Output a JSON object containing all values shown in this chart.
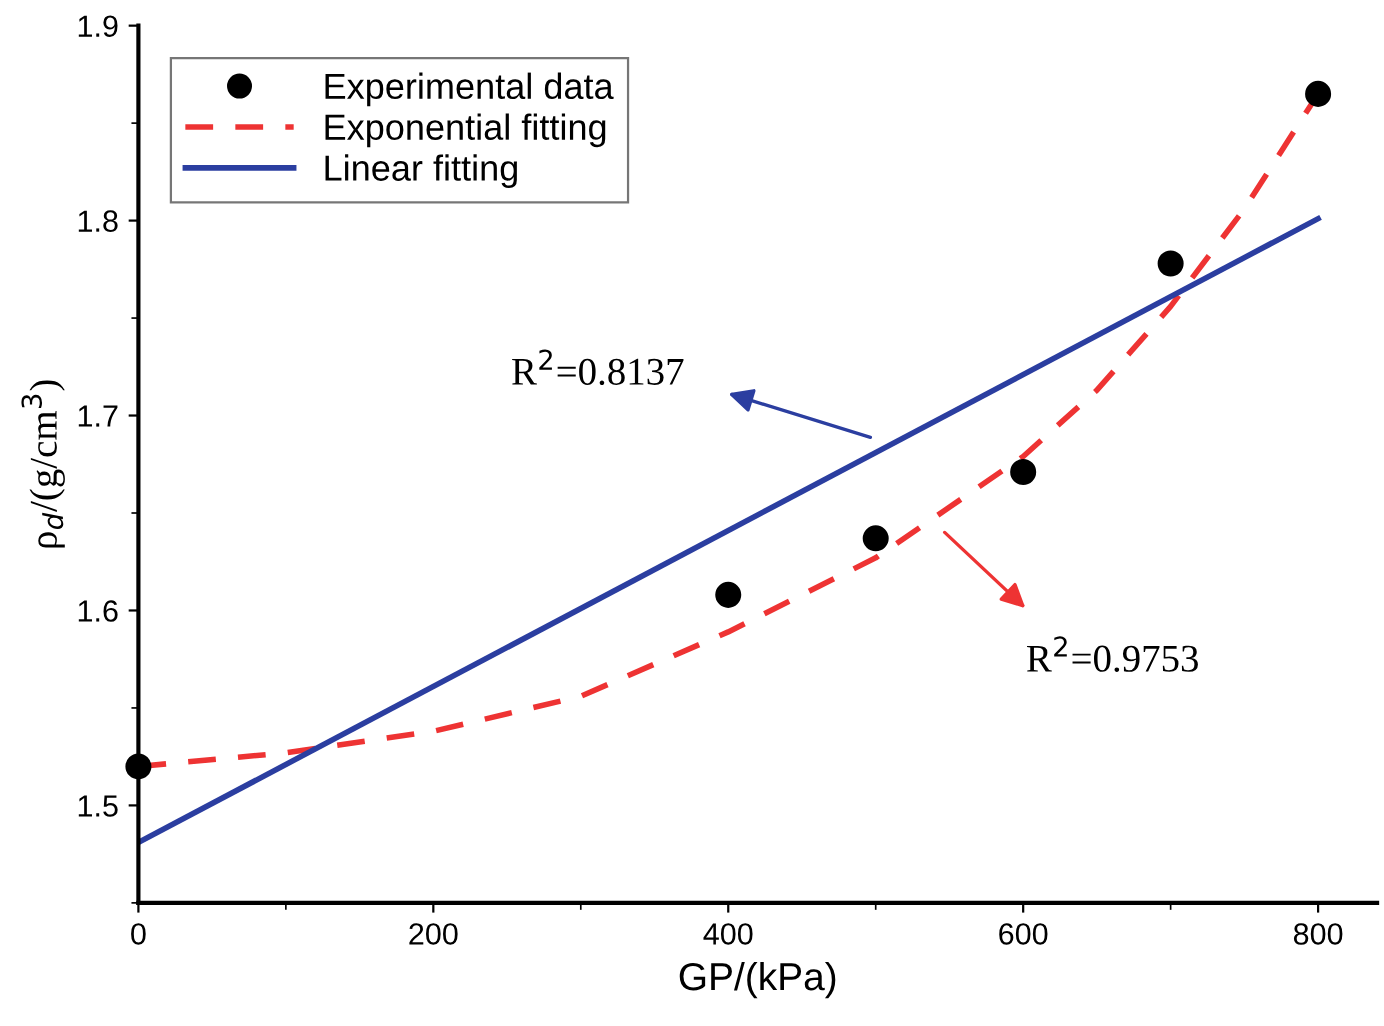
{
  "chart_data": {
    "type": "scatter",
    "xlabel": "GP/(kPa)",
    "ylabel": "ρ$_{d}$/(g/cm$^{3}$)",
    "xlim": [
      0,
      840
    ],
    "ylim": [
      1.45,
      1.9
    ],
    "xticks": [
      0,
      200,
      400,
      600,
      800
    ],
    "yticks": [
      1.5,
      1.6,
      1.7,
      1.8,
      1.9
    ],
    "legend": "top left",
    "grid": false,
    "series": [
      {
        "name": "Experimental data",
        "marker": "circle",
        "color": "#000000",
        "x": [
          0,
          400,
          500,
          600,
          700,
          800
        ],
        "values": [
          1.52,
          1.608,
          1.637,
          1.671,
          1.778,
          1.865
        ]
      },
      {
        "name": "Exponential fitting",
        "type": "line",
        "line_style": "dashed",
        "marker": "none",
        "color": "#ee3333",
        "x": [
          0,
          100,
          200,
          300,
          400,
          500,
          600,
          650,
          700,
          750,
          800
        ],
        "values": [
          1.52,
          1.527,
          1.538,
          1.556,
          1.589,
          1.627,
          1.679,
          1.713,
          1.756,
          1.806,
          1.865
        ]
      },
      {
        "name": "Linear fitting",
        "type": "line",
        "line_style": "solid",
        "marker": "none",
        "color": "#2b3ea0",
        "x": [
          0,
          800
        ],
        "values": [
          1.481,
          1.801
        ]
      }
    ],
    "annotations": [
      {
        "text": "R$^{2}$=0.8137",
        "x": 500,
        "y": 1.688
      },
      {
        "text": "R$^{2}$=0.9753",
        "x": 544,
        "y": 1.642
      }
    ]
  }
}
